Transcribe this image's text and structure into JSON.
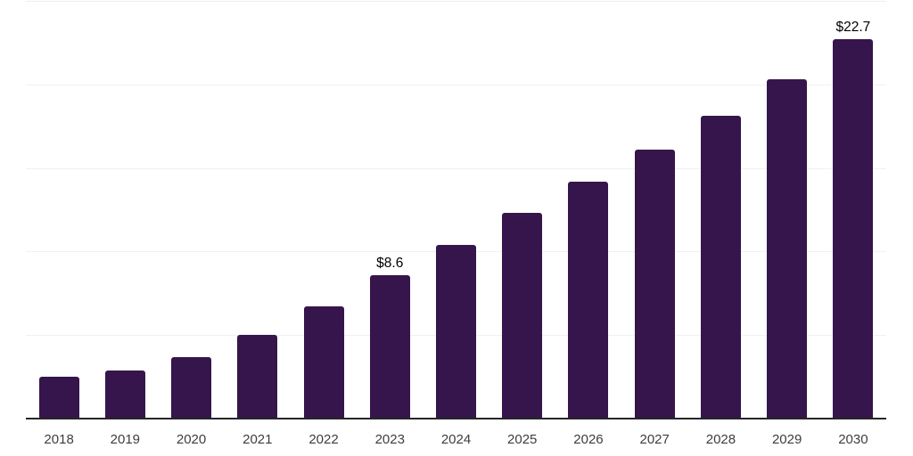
{
  "chart_data": {
    "type": "bar",
    "title": "",
    "xlabel": "",
    "ylabel": "",
    "categories": [
      "2018",
      "2019",
      "2020",
      "2021",
      "2022",
      "2023",
      "2024",
      "2025",
      "2026",
      "2027",
      "2028",
      "2029",
      "2030"
    ],
    "values": [
      2.5,
      2.9,
      3.7,
      5.0,
      6.7,
      8.6,
      10.4,
      12.3,
      14.2,
      16.1,
      18.1,
      20.3,
      22.7
    ],
    "annotations": [
      {
        "category": "2023",
        "text": "$8.6"
      },
      {
        "category": "2030",
        "text": "$22.7"
      }
    ],
    "ylim": [
      0,
      25
    ],
    "gridline_values": [
      5,
      10,
      15,
      20,
      25
    ],
    "grid": true,
    "legend": false,
    "y_axis_labels_visible": false,
    "colors": {
      "bar": "#35154b",
      "gridline": "#f0f0f0",
      "axis": "#262626",
      "tick_label": "#3d3d3d",
      "data_label": "#000000",
      "background": "#ffffff"
    }
  }
}
